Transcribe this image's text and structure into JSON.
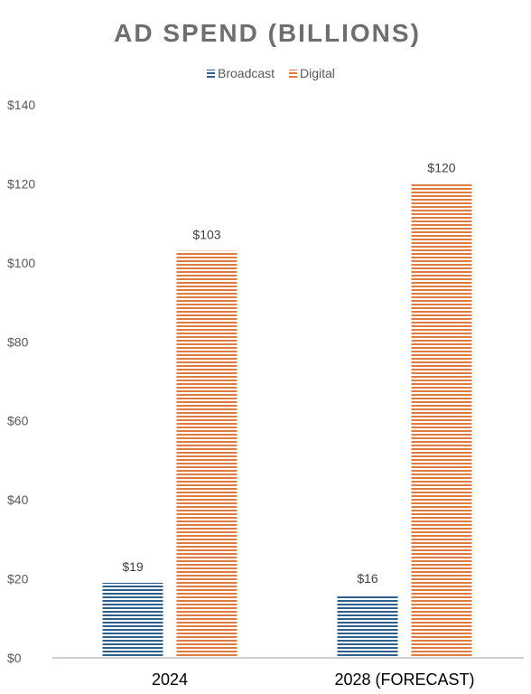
{
  "chart_data": {
    "type": "bar",
    "title": "AD SPEND (BILLIONS)",
    "categories": [
      "2024",
      "2028 (FORECAST)"
    ],
    "series": [
      {
        "name": "Broadcast",
        "values": [
          19,
          16
        ],
        "labels": [
          "$19",
          "$16"
        ],
        "color": "#2E5F8F"
      },
      {
        "name": "Digital",
        "values": [
          103,
          120
        ],
        "labels": [
          "$103",
          "$120"
        ],
        "color": "#E07B3F"
      }
    ],
    "ylim": [
      0,
      140
    ],
    "yticks": [
      0,
      20,
      40,
      60,
      80,
      100,
      120,
      140
    ],
    "ytick_labels": [
      "$0",
      "$20",
      "$40",
      "$60",
      "$80",
      "$100",
      "$120",
      "$140"
    ],
    "legend_position": "top-center",
    "grid": false,
    "bar_pattern": "horizontal-stripes"
  },
  "colors": {
    "title": "#6E6E6E",
    "axis_text": "#595959",
    "baseline": "#BFBFBF",
    "category_text": "#000000"
  }
}
